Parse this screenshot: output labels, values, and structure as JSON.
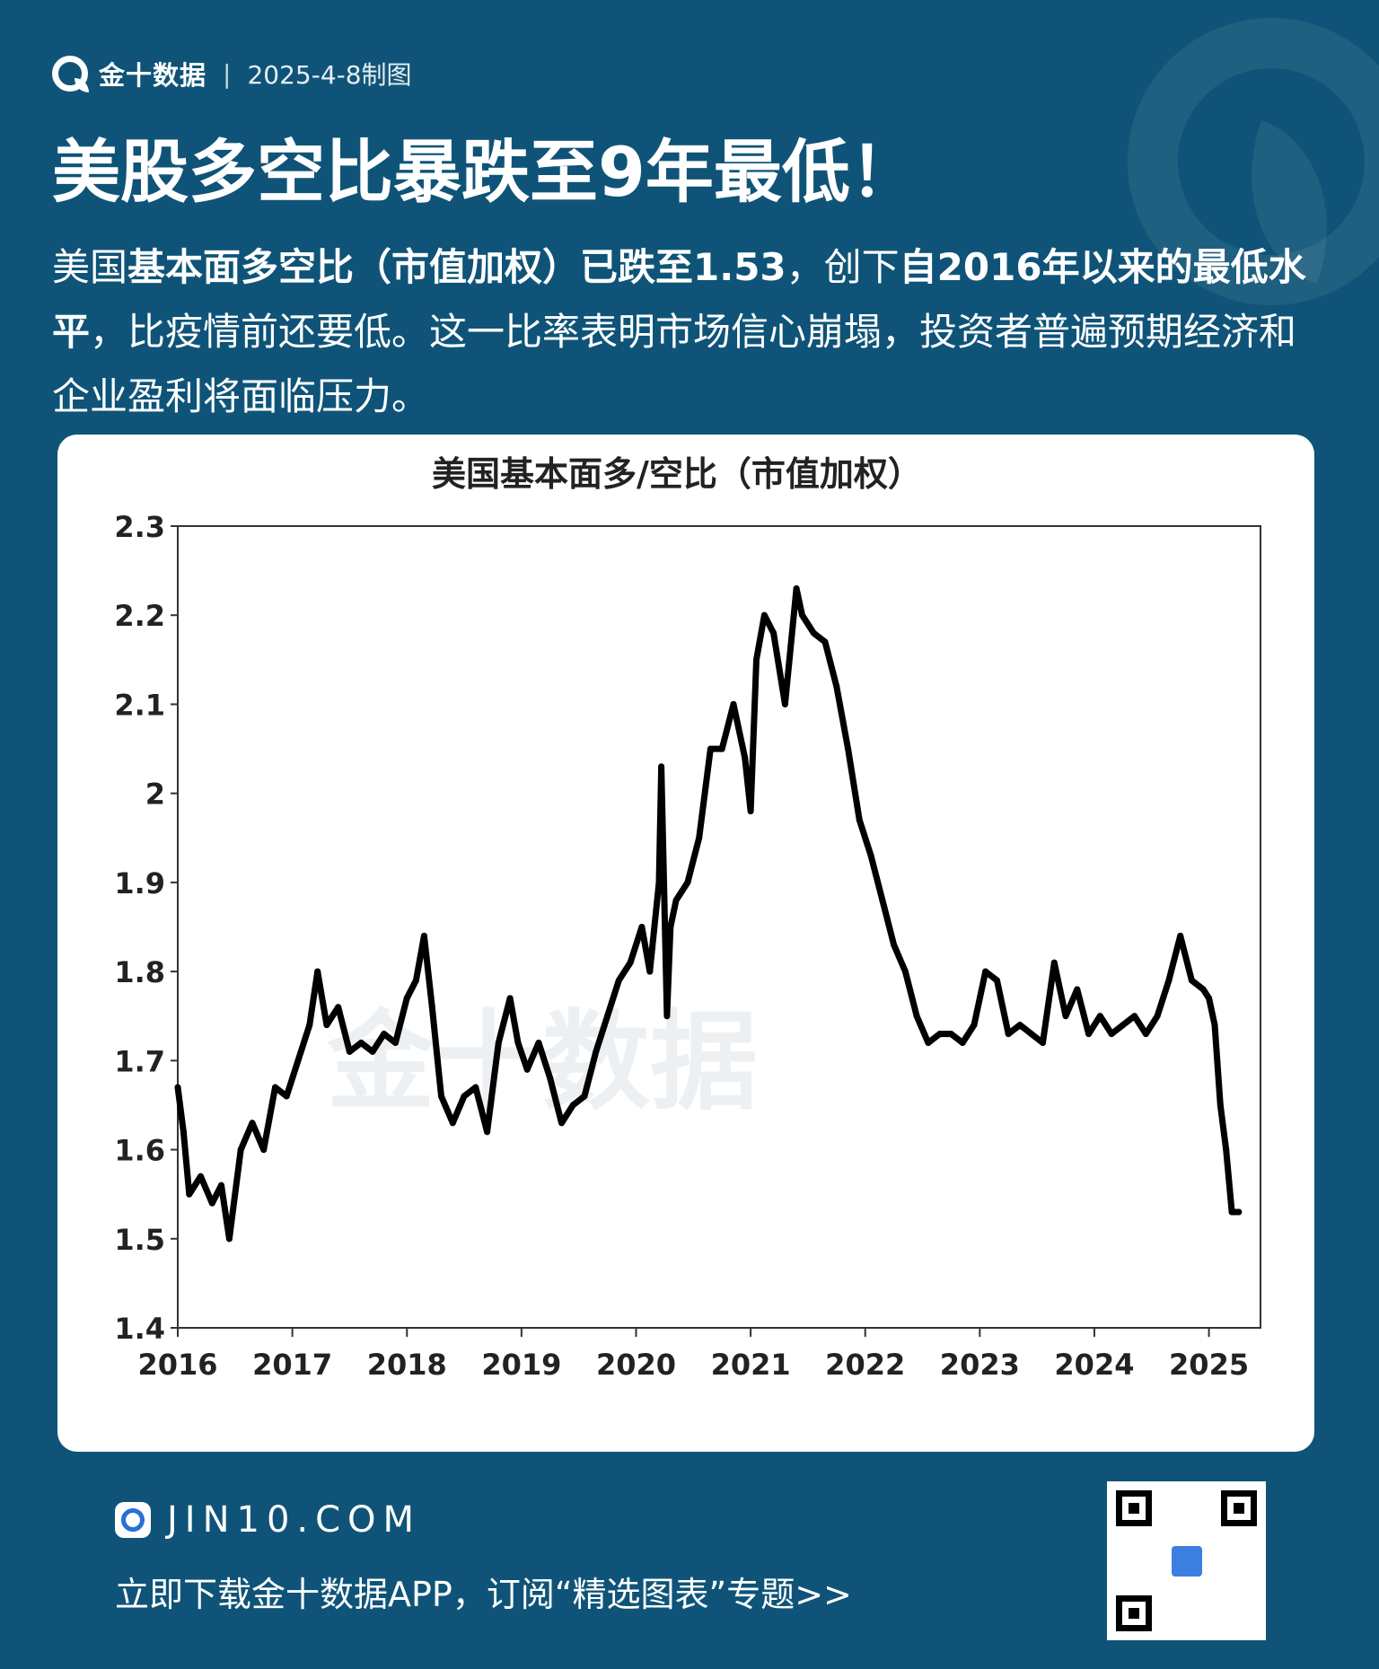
{
  "header": {
    "brand": "金十数据",
    "separator": "|",
    "date": "2025-4-8制图"
  },
  "headline": "美股多空比暴跌至9年最低！",
  "summary": {
    "p1": "美国",
    "b1": "基本面多空比（市值加权）已跌至1.53",
    "p2": "，创下",
    "b2": "自2016年以来的最低水平",
    "p3": "，比疫情前还要低。这一比率表明市场信心崩塌，投资者普遍预期经济和企业盈利将面临压力。"
  },
  "watermark": "金十数据",
  "chart_data": {
    "type": "line",
    "title": "美国基本面多/空比（市值加权）",
    "xlabel": "",
    "ylabel": "",
    "xlim": [
      2016.0,
      2025.45
    ],
    "ylim": [
      1.4,
      2.3
    ],
    "x_ticks": [
      "2016",
      "2017",
      "2018",
      "2019",
      "2020",
      "2021",
      "2022",
      "2023",
      "2024",
      "2025"
    ],
    "y_ticks": [
      "1.4",
      "1.5",
      "1.6",
      "1.7",
      "1.8",
      "1.9",
      "2",
      "2.1",
      "2.2",
      "2.3"
    ],
    "grid": false,
    "series": [
      {
        "name": "",
        "color": "#000000",
        "x": [
          2016.0,
          2016.05,
          2016.1,
          2016.2,
          2016.3,
          2016.38,
          2016.45,
          2016.55,
          2016.65,
          2016.75,
          2016.85,
          2016.95,
          2017.05,
          2017.15,
          2017.22,
          2017.3,
          2017.4,
          2017.5,
          2017.6,
          2017.7,
          2017.8,
          2017.9,
          2018.0,
          2018.08,
          2018.15,
          2018.22,
          2018.3,
          2018.4,
          2018.5,
          2018.6,
          2018.7,
          2018.8,
          2018.9,
          2018.97,
          2019.05,
          2019.15,
          2019.25,
          2019.35,
          2019.45,
          2019.55,
          2019.65,
          2019.75,
          2019.85,
          2019.95,
          2020.05,
          2020.12,
          2020.2,
          2020.22,
          2020.27,
          2020.3,
          2020.35,
          2020.45,
          2020.55,
          2020.65,
          2020.75,
          2020.85,
          2020.95,
          2021.0,
          2021.05,
          2021.12,
          2021.2,
          2021.3,
          2021.4,
          2021.45,
          2021.55,
          2021.65,
          2021.75,
          2021.85,
          2021.95,
          2022.05,
          2022.15,
          2022.25,
          2022.35,
          2022.45,
          2022.55,
          2022.65,
          2022.75,
          2022.85,
          2022.95,
          2023.05,
          2023.15,
          2023.25,
          2023.35,
          2023.45,
          2023.55,
          2023.65,
          2023.75,
          2023.85,
          2023.95,
          2024.05,
          2024.15,
          2024.25,
          2024.35,
          2024.45,
          2024.55,
          2024.65,
          2024.75,
          2024.85,
          2024.95,
          2025.0,
          2025.05,
          2025.1,
          2025.15,
          2025.2,
          2025.26
        ],
        "y": [
          1.67,
          1.62,
          1.55,
          1.57,
          1.54,
          1.56,
          1.5,
          1.6,
          1.63,
          1.6,
          1.67,
          1.66,
          1.7,
          1.74,
          1.8,
          1.74,
          1.76,
          1.71,
          1.72,
          1.71,
          1.73,
          1.72,
          1.77,
          1.79,
          1.84,
          1.76,
          1.66,
          1.63,
          1.66,
          1.67,
          1.62,
          1.72,
          1.77,
          1.72,
          1.69,
          1.72,
          1.68,
          1.63,
          1.65,
          1.66,
          1.71,
          1.75,
          1.79,
          1.81,
          1.85,
          1.8,
          1.9,
          2.03,
          1.75,
          1.85,
          1.88,
          1.9,
          1.95,
          2.05,
          2.05,
          2.1,
          2.04,
          1.98,
          2.15,
          2.2,
          2.18,
          2.1,
          2.23,
          2.2,
          2.18,
          2.17,
          2.12,
          2.05,
          1.97,
          1.93,
          1.88,
          1.83,
          1.8,
          1.75,
          1.72,
          1.73,
          1.73,
          1.72,
          1.74,
          1.8,
          1.79,
          1.73,
          1.74,
          1.73,
          1.72,
          1.81,
          1.75,
          1.78,
          1.73,
          1.75,
          1.73,
          1.74,
          1.75,
          1.73,
          1.75,
          1.79,
          1.84,
          1.79,
          1.78,
          1.77,
          1.74,
          1.65,
          1.6,
          1.53,
          1.53
        ]
      }
    ]
  },
  "footer": {
    "site": "JIN10.COM",
    "cta": "立即下载金十数据APP，订阅“精选图表”专题>>"
  }
}
